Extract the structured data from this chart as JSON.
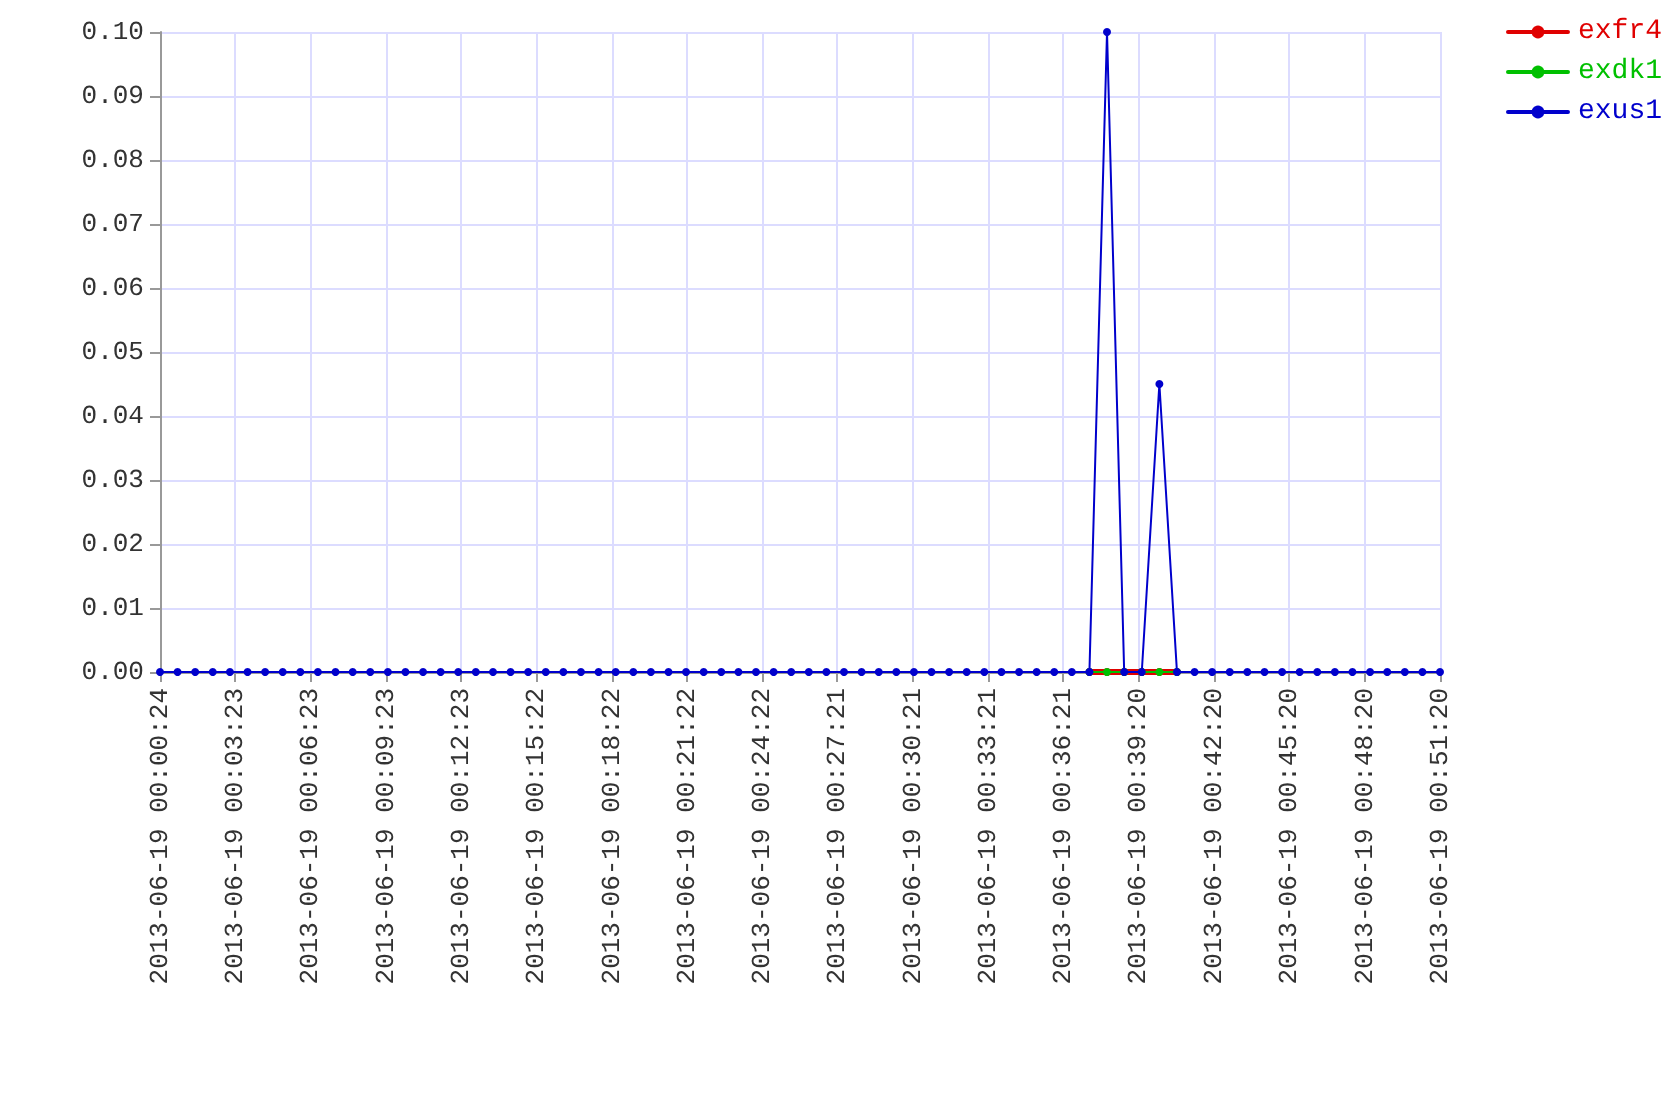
{
  "chart_data": {
    "type": "line",
    "x": [
      "2013-06-19T00:00:24",
      "2013-06-19T00:01:06",
      "2013-06-19T00:01:48",
      "2013-06-19T00:02:30",
      "2013-06-19T00:03:11",
      "2013-06-19T00:03:53",
      "2013-06-19T00:04:35",
      "2013-06-19T00:05:17",
      "2013-06-19T00:05:59",
      "2013-06-19T00:06:41",
      "2013-06-19T00:07:23",
      "2013-06-19T00:08:04",
      "2013-06-19T00:08:46",
      "2013-06-19T00:09:28",
      "2013-06-19T00:10:10",
      "2013-06-19T00:10:52",
      "2013-06-19T00:11:34",
      "2013-06-19T00:12:16",
      "2013-06-19T00:12:58",
      "2013-06-19T00:13:39",
      "2013-06-19T00:14:21",
      "2013-06-19T00:15:03",
      "2013-06-19T00:15:45",
      "2013-06-19T00:16:27",
      "2013-06-19T00:17:09",
      "2013-06-19T00:17:51",
      "2013-06-19T00:18:32",
      "2013-06-19T00:19:14",
      "2013-06-19T00:19:56",
      "2013-06-19T00:20:38",
      "2013-06-19T00:21:20",
      "2013-06-19T00:22:02",
      "2013-06-19T00:22:44",
      "2013-06-19T00:23:25",
      "2013-06-19T00:24:07",
      "2013-06-19T00:24:49",
      "2013-06-19T00:25:31",
      "2013-06-19T00:26:13",
      "2013-06-19T00:26:55",
      "2013-06-19T00:27:37",
      "2013-06-19T00:28:19",
      "2013-06-19T00:29:00",
      "2013-06-19T00:29:42",
      "2013-06-19T00:30:24",
      "2013-06-19T00:31:06",
      "2013-06-19T00:31:48",
      "2013-06-19T00:32:30",
      "2013-06-19T00:33:12",
      "2013-06-19T00:33:53",
      "2013-06-19T00:34:35",
      "2013-06-19T00:35:17",
      "2013-06-19T00:35:59",
      "2013-06-19T00:36:41",
      "2013-06-19T00:37:23",
      "2013-06-19T00:38:05",
      "2013-06-19T00:38:46",
      "2013-06-19T00:39:28",
      "2013-06-19T00:40:10",
      "2013-06-19T00:40:52",
      "2013-06-19T00:41:34",
      "2013-06-19T00:42:16",
      "2013-06-19T00:42:58",
      "2013-06-19T00:43:40",
      "2013-06-19T00:44:21",
      "2013-06-19T00:45:03",
      "2013-06-19T00:45:45",
      "2013-06-19T00:46:27",
      "2013-06-19T00:47:09",
      "2013-06-19T00:47:51",
      "2013-06-19T00:48:33",
      "2013-06-19T00:49:14",
      "2013-06-19T00:49:56",
      "2013-06-19T00:50:38",
      "2013-06-19T00:51:20"
    ],
    "series": [
      {
        "name": "exfr4",
        "color": "#e00000",
        "values": [
          null,
          null,
          null,
          null,
          null,
          null,
          null,
          null,
          null,
          null,
          null,
          null,
          null,
          null,
          null,
          null,
          null,
          null,
          null,
          null,
          null,
          null,
          null,
          null,
          null,
          null,
          null,
          null,
          null,
          null,
          null,
          null,
          null,
          null,
          null,
          null,
          null,
          null,
          null,
          null,
          null,
          null,
          null,
          null,
          null,
          null,
          null,
          null,
          null,
          null,
          null,
          null,
          null,
          0,
          0,
          0,
          0,
          0,
          0,
          null,
          null,
          null,
          null,
          null,
          null,
          null,
          null,
          null,
          null,
          null,
          null,
          null,
          null,
          null
        ]
      },
      {
        "name": "exdk1",
        "color": "#00c000",
        "values": [
          null,
          null,
          null,
          null,
          null,
          null,
          null,
          null,
          null,
          null,
          null,
          null,
          null,
          null,
          null,
          null,
          null,
          null,
          null,
          null,
          null,
          null,
          null,
          null,
          null,
          null,
          null,
          null,
          null,
          null,
          null,
          null,
          null,
          null,
          null,
          null,
          null,
          null,
          null,
          null,
          null,
          null,
          null,
          null,
          null,
          null,
          null,
          null,
          null,
          null,
          null,
          null,
          null,
          0,
          0,
          0,
          0,
          0,
          0,
          null,
          null,
          null,
          null,
          null,
          null,
          null,
          null,
          null,
          null,
          null,
          null,
          null,
          null,
          null
        ]
      },
      {
        "name": "exus1",
        "color": "#0000cc",
        "values": [
          0,
          0,
          0,
          0,
          0,
          0,
          0,
          0,
          0,
          0,
          0,
          0,
          0,
          0,
          0,
          0,
          0,
          0,
          0,
          0,
          0,
          0,
          0,
          0,
          0,
          0,
          0,
          0,
          0,
          0,
          0,
          0,
          0,
          0,
          0,
          0,
          0,
          0,
          0,
          0,
          0,
          0,
          0,
          0,
          0,
          0,
          0,
          0,
          0,
          0,
          0,
          0,
          0,
          0,
          0.1,
          0,
          0,
          0.045,
          0,
          0,
          0,
          0,
          0,
          0,
          0,
          0,
          0,
          0,
          0,
          0,
          0,
          0,
          0,
          0
        ]
      }
    ],
    "xlim": [
      "2013-06-19T00:00:24",
      "2013-06-19T00:51:20"
    ],
    "xticks": [
      {
        "value": "2013-06-19T00:00:24",
        "label": "2013-06-19 00:00:24"
      },
      {
        "value": "2013-06-19T00:03:23",
        "label": "2013-06-19 00:03:23"
      },
      {
        "value": "2013-06-19T00:06:23",
        "label": "2013-06-19 00:06:23"
      },
      {
        "value": "2013-06-19T00:09:23",
        "label": "2013-06-19 00:09:23"
      },
      {
        "value": "2013-06-19T00:12:23",
        "label": "2013-06-19 00:12:23"
      },
      {
        "value": "2013-06-19T00:15:22",
        "label": "2013-06-19 00:15:22"
      },
      {
        "value": "2013-06-19T00:18:22",
        "label": "2013-06-19 00:18:22"
      },
      {
        "value": "2013-06-19T00:21:22",
        "label": "2013-06-19 00:21:22"
      },
      {
        "value": "2013-06-19T00:24:22",
        "label": "2013-06-19 00:24:22"
      },
      {
        "value": "2013-06-19T00:27:21",
        "label": "2013-06-19 00:27:21"
      },
      {
        "value": "2013-06-19T00:30:21",
        "label": "2013-06-19 00:30:21"
      },
      {
        "value": "2013-06-19T00:33:21",
        "label": "2013-06-19 00:33:21"
      },
      {
        "value": "2013-06-19T00:36:21",
        "label": "2013-06-19 00:36:21"
      },
      {
        "value": "2013-06-19T00:39:20",
        "label": "2013-06-19 00:39:20"
      },
      {
        "value": "2013-06-19T00:42:20",
        "label": "2013-06-19 00:42:20"
      },
      {
        "value": "2013-06-19T00:45:20",
        "label": "2013-06-19 00:45:20"
      },
      {
        "value": "2013-06-19T00:48:20",
        "label": "2013-06-19 00:48:20"
      },
      {
        "value": "2013-06-19T00:51:20",
        "label": "2013-06-19 00:51:20"
      }
    ],
    "ylim": [
      0,
      0.1
    ],
    "yticks": [
      {
        "value": 0,
        "label": "0.00"
      },
      {
        "value": 0.01,
        "label": "0.01"
      },
      {
        "value": 0.02,
        "label": "0.02"
      },
      {
        "value": 0.03,
        "label": "0.03"
      },
      {
        "value": 0.04,
        "label": "0.04"
      },
      {
        "value": 0.05,
        "label": "0.05"
      },
      {
        "value": 0.06,
        "label": "0.06"
      },
      {
        "value": 0.07,
        "label": "0.07"
      },
      {
        "value": 0.08,
        "label": "0.08"
      },
      {
        "value": 0.09,
        "label": "0.09"
      },
      {
        "value": 0.1,
        "label": "0.10"
      }
    ],
    "grid": true,
    "legend": "top right",
    "marker": "circle",
    "line_style": "solid"
  }
}
